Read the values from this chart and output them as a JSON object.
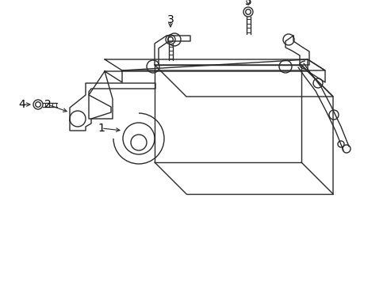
{
  "background_color": "#ffffff",
  "line_color": "#2a2a2a",
  "label_color": "#000000",
  "figsize": [
    4.89,
    3.6
  ],
  "dpi": 100,
  "lw": 1.0
}
